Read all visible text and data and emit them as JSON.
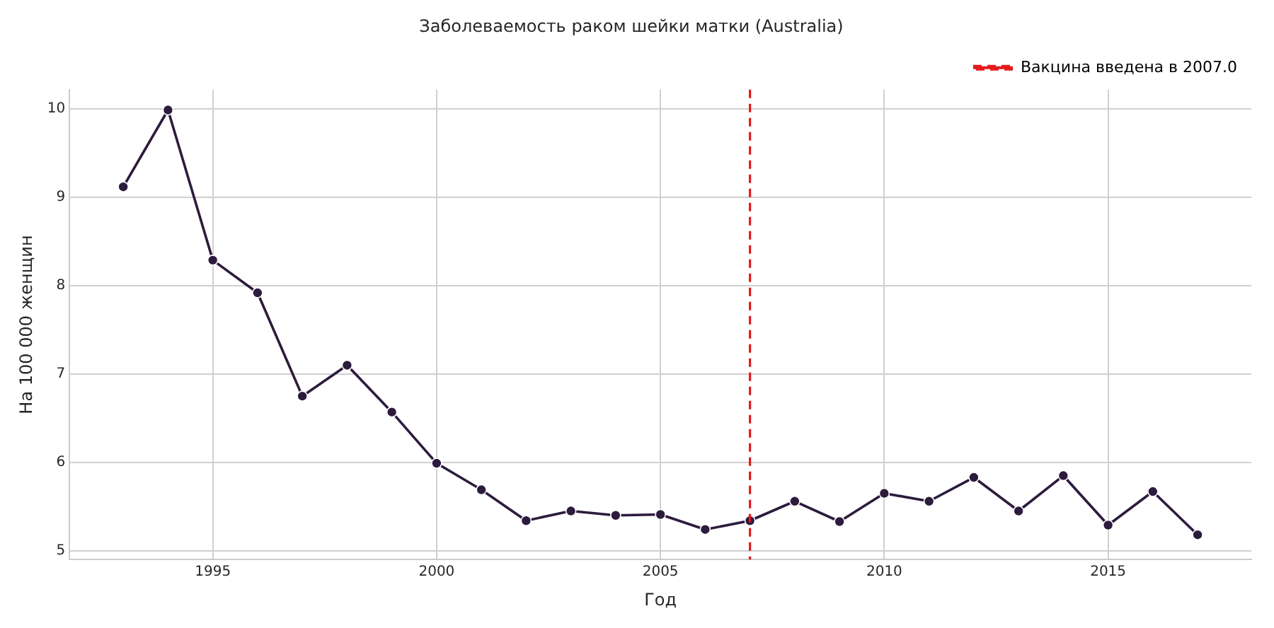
{
  "chart_data": {
    "type": "line",
    "title": "Заболеваемость раком шейки матки (Australia)",
    "xlabel": "Год",
    "ylabel": "На 100 000 женщин",
    "x": [
      1993,
      1994,
      1995,
      1996,
      1997,
      1998,
      1999,
      2000,
      2001,
      2002,
      2003,
      2004,
      2005,
      2006,
      2007,
      2008,
      2009,
      2010,
      2011,
      2012,
      2013,
      2014,
      2015,
      2016,
      2017
    ],
    "series": [
      {
        "color": "#2d1b3d",
        "values": [
          9.12,
          9.99,
          8.29,
          7.92,
          6.75,
          7.1,
          6.57,
          5.99,
          5.69,
          5.34,
          5.45,
          5.4,
          5.41,
          5.24,
          5.34,
          5.56,
          5.33,
          5.65,
          5.56,
          5.83,
          5.45,
          5.85,
          5.29,
          5.67,
          5.18
        ]
      }
    ],
    "xlim": [
      1991.8,
      2018.2
    ],
    "xticks": [
      1995,
      2000,
      2005,
      2010,
      2015
    ],
    "ylim": [
      4.9,
      10.22
    ],
    "yticks": [
      5,
      6,
      7,
      8,
      9,
      10
    ],
    "ref_lines": [
      {
        "axis": "x",
        "value": 2007,
        "label": "Вакцина введена в 2007.0",
        "color": "#e41a1c",
        "line_style": "dashed"
      }
    ],
    "grid": true,
    "legend": "top right",
    "marker": "circle",
    "line_style": "solid"
  }
}
